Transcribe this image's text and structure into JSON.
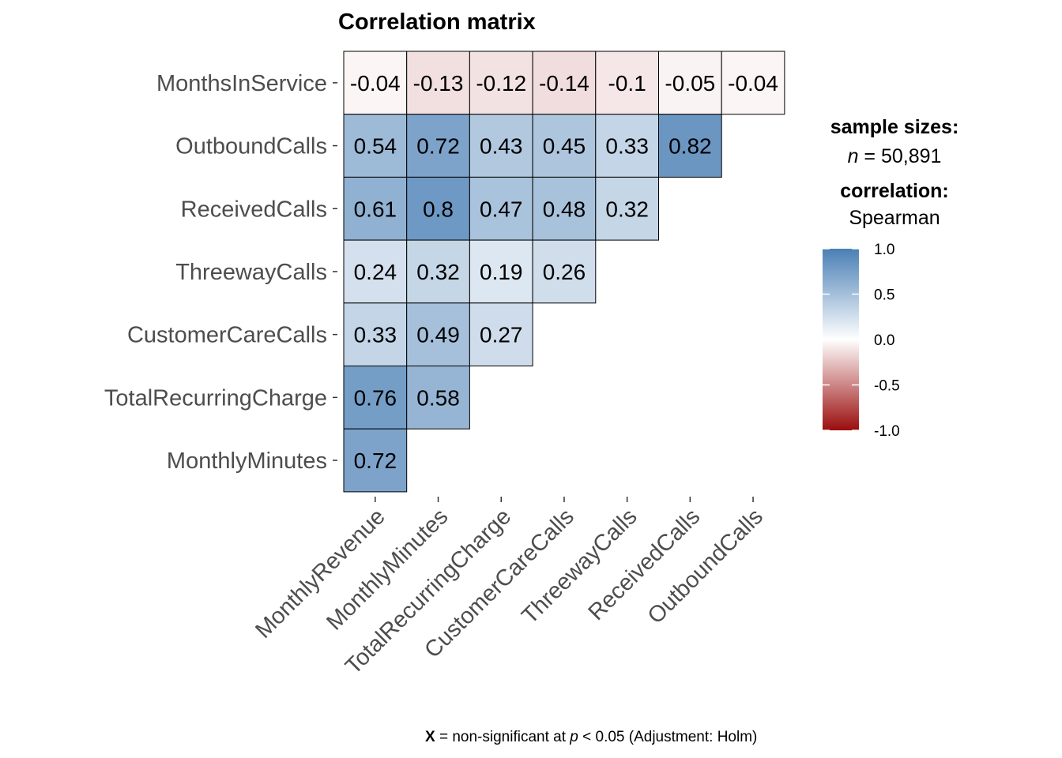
{
  "chart_data": {
    "type": "heatmap",
    "title": "Correlation matrix",
    "x_categories": [
      "MonthlyRevenue",
      "MonthlyMinutes",
      "TotalRecurringCharge",
      "CustomerCareCalls",
      "ThreewayCalls",
      "ReceivedCalls",
      "OutboundCalls"
    ],
    "y_categories": [
      "MonthsInService",
      "OutboundCalls",
      "ReceivedCalls",
      "ThreewayCalls",
      "CustomerCareCalls",
      "TotalRecurringCharge",
      "MonthlyMinutes"
    ],
    "values": [
      [
        "-0.04",
        "-0.13",
        "-0.12",
        "-0.14",
        "-0.1",
        "-0.05",
        "-0.04"
      ],
      [
        "0.54",
        "0.72",
        "0.43",
        "0.45",
        "0.33",
        "0.82"
      ],
      [
        "0.61",
        "0.8",
        "0.47",
        "0.48",
        "0.32"
      ],
      [
        "0.24",
        "0.32",
        "0.19",
        "0.26"
      ],
      [
        "0.33",
        "0.49",
        "0.27"
      ],
      [
        "0.76",
        "0.58"
      ],
      [
        "0.72"
      ]
    ],
    "color_scale": {
      "low": "#9b0d0d",
      "mid": "#ffffff",
      "high": "#4a7fb5",
      "ticks": [
        "1.0",
        "0.5",
        "0.0",
        "-0.5",
        "-1.0"
      ],
      "range": [
        -1,
        1
      ]
    },
    "legend": {
      "sample_heading": "sample sizes:",
      "n_symbol": "n",
      "n_value": "= 50,891",
      "corr_heading": "correlation:",
      "corr_method": "Spearman"
    },
    "caption": {
      "symbol": "X",
      "text_a": "= non-significant at",
      "p_symbol": "p",
      "text_b": "< 0.05 (Adjustment: Holm)"
    }
  }
}
